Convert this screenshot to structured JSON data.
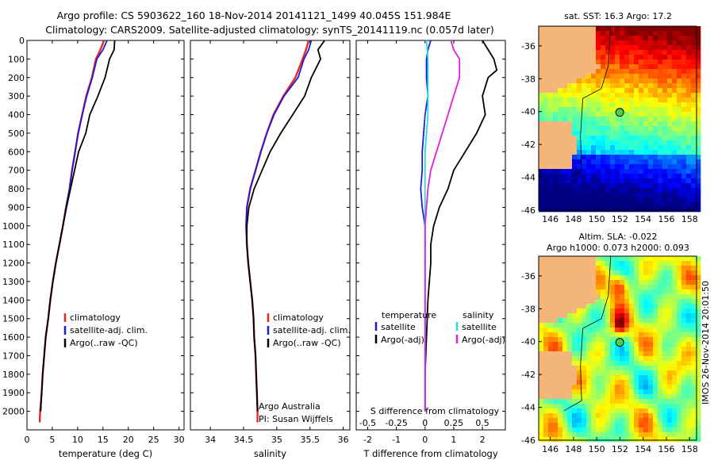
{
  "header": {
    "line1": "Argo profile: CS 5903622_160 18-Nov-2014 20141121_1499 40.045S 151.984E",
    "line2": "Climatology: CARS2009. Satellite-adjusted climatology: synTS_20141119.nc (0.057d later)"
  },
  "colors": {
    "climatology": "#e8281e",
    "satellite": "#1c1cd8",
    "argo": "#000000",
    "sat_salinity": "#22e0e0",
    "argo_salinity": "#e020e0",
    "land": "#f3b57a",
    "marker": "#4ad04a"
  },
  "chart_data": [
    {
      "type": "line",
      "id": "temperature",
      "xlabel": "temperature (deg C)",
      "ylabel": "",
      "xlim": [
        0,
        31
      ],
      "ylim": [
        2100,
        0
      ],
      "x_ticks": [
        "0",
        "5",
        "10",
        "15",
        "20",
        "25",
        "30"
      ],
      "y_ticks": [
        "0",
        "100",
        "200",
        "300",
        "400",
        "500",
        "600",
        "700",
        "800",
        "900",
        "1000",
        "1100",
        "1200",
        "1300",
        "1400",
        "1500",
        "1600",
        "1700",
        "1800",
        "1900",
        "2000"
      ],
      "legend": [
        "climatology",
        "satellite-adj. clim.",
        "Argo(..raw -QC)"
      ],
      "series": [
        {
          "name": "climatology",
          "color_key": "climatology",
          "points": [
            [
              15.2,
              0
            ],
            [
              14.5,
              50
            ],
            [
              13.6,
              100
            ],
            [
              12.8,
              200
            ],
            [
              11.7,
              300
            ],
            [
              10.9,
              400
            ],
            [
              10.1,
              500
            ],
            [
              9.5,
              600
            ],
            [
              8.9,
              700
            ],
            [
              8.4,
              800
            ],
            [
              7.7,
              900
            ],
            [
              7.1,
              1000
            ],
            [
              6.4,
              1100
            ],
            [
              5.7,
              1200
            ],
            [
              5.1,
              1300
            ],
            [
              4.6,
              1400
            ],
            [
              4.2,
              1500
            ],
            [
              3.7,
              1600
            ],
            [
              3.4,
              1700
            ],
            [
              3.1,
              1800
            ],
            [
              2.9,
              1900
            ],
            [
              2.6,
              2000
            ],
            [
              2.5,
              2060
            ]
          ]
        },
        {
          "name": "satellite-adj. clim.",
          "color_key": "satellite",
          "points": [
            [
              15.8,
              0
            ],
            [
              15.0,
              50
            ],
            [
              13.8,
              100
            ],
            [
              12.9,
              200
            ],
            [
              11.8,
              300
            ],
            [
              10.9,
              400
            ],
            [
              10.1,
              500
            ],
            [
              9.5,
              600
            ],
            [
              8.9,
              700
            ],
            [
              8.4,
              800
            ],
            [
              7.7,
              900
            ],
            [
              7.1,
              1000
            ],
            [
              6.4,
              1100
            ],
            [
              5.7,
              1200
            ],
            [
              5.1,
              1300
            ],
            [
              4.6,
              1400
            ],
            [
              4.2,
              1500
            ],
            [
              3.7,
              1600
            ],
            [
              3.4,
              1700
            ],
            [
              3.1,
              1800
            ],
            [
              2.9,
              1900
            ],
            [
              2.7,
              2000
            ]
          ]
        },
        {
          "name": "Argo(..raw -QC)",
          "color_key": "argo",
          "points": [
            [
              17.3,
              0
            ],
            [
              17.2,
              50
            ],
            [
              16.3,
              100
            ],
            [
              15.4,
              200
            ],
            [
              14.0,
              300
            ],
            [
              12.4,
              400
            ],
            [
              11.6,
              500
            ],
            [
              10.2,
              600
            ],
            [
              9.4,
              700
            ],
            [
              8.6,
              800
            ],
            [
              7.8,
              900
            ],
            [
              7.1,
              1000
            ],
            [
              6.4,
              1100
            ],
            [
              5.7,
              1200
            ],
            [
              5.1,
              1300
            ],
            [
              4.6,
              1400
            ],
            [
              4.2,
              1500
            ],
            [
              3.7,
              1600
            ],
            [
              3.4,
              1700
            ],
            [
              3.1,
              1800
            ],
            [
              2.9,
              1900
            ],
            [
              2.7,
              2000
            ]
          ]
        }
      ]
    },
    {
      "type": "line",
      "id": "salinity",
      "xlabel": "salinity",
      "xlim": [
        33.7,
        36.1
      ],
      "ylim": [
        2100,
        0
      ],
      "x_ticks": [
        "34",
        "34.5",
        "35",
        "35.5",
        "36"
      ],
      "legend": [
        "climatology",
        "satellite-adj. clim.",
        "Argo(..raw -QC)"
      ],
      "annotation": [
        "Argo Australia",
        "PI: Susan Wijffels"
      ],
      "series": [
        {
          "name": "climatology",
          "color_key": "climatology",
          "points": [
            [
              35.48,
              0
            ],
            [
              35.44,
              50
            ],
            [
              35.39,
              100
            ],
            [
              35.28,
              200
            ],
            [
              35.1,
              300
            ],
            [
              34.95,
              400
            ],
            [
              34.85,
              500
            ],
            [
              34.76,
              600
            ],
            [
              34.68,
              700
            ],
            [
              34.6,
              800
            ],
            [
              34.55,
              900
            ],
            [
              34.54,
              1000
            ],
            [
              34.55,
              1100
            ],
            [
              34.57,
              1200
            ],
            [
              34.6,
              1300
            ],
            [
              34.63,
              1400
            ],
            [
              34.65,
              1500
            ],
            [
              34.66,
              1600
            ],
            [
              34.68,
              1700
            ],
            [
              34.69,
              1800
            ],
            [
              34.7,
              1900
            ],
            [
              34.71,
              2000
            ],
            [
              34.71,
              2060
            ]
          ]
        },
        {
          "name": "satellite-adj. clim.",
          "color_key": "satellite",
          "points": [
            [
              35.52,
              0
            ],
            [
              35.48,
              50
            ],
            [
              35.41,
              100
            ],
            [
              35.32,
              200
            ],
            [
              35.11,
              300
            ],
            [
              34.96,
              400
            ],
            [
              34.85,
              500
            ],
            [
              34.76,
              600
            ],
            [
              34.68,
              700
            ],
            [
              34.6,
              800
            ],
            [
              34.55,
              900
            ],
            [
              34.54,
              1000
            ],
            [
              34.55,
              1100
            ],
            [
              34.57,
              1200
            ],
            [
              34.6,
              1300
            ],
            [
              34.63,
              1400
            ],
            [
              34.65,
              1500
            ],
            [
              34.66,
              1600
            ],
            [
              34.68,
              1700
            ],
            [
              34.69,
              1800
            ],
            [
              34.7,
              1900
            ],
            [
              34.71,
              2000
            ]
          ]
        },
        {
          "name": "Argo(..raw -QC)",
          "color_key": "argo",
          "points": [
            [
              35.72,
              0
            ],
            [
              35.62,
              50
            ],
            [
              35.66,
              100
            ],
            [
              35.52,
              200
            ],
            [
              35.42,
              300
            ],
            [
              35.24,
              400
            ],
            [
              35.06,
              500
            ],
            [
              34.9,
              600
            ],
            [
              34.78,
              700
            ],
            [
              34.66,
              800
            ],
            [
              34.58,
              900
            ],
            [
              34.55,
              1000
            ],
            [
              34.55,
              1100
            ],
            [
              34.57,
              1200
            ],
            [
              34.6,
              1300
            ],
            [
              34.63,
              1400
            ],
            [
              34.65,
              1500
            ],
            [
              34.66,
              1600
            ],
            [
              34.68,
              1700
            ],
            [
              34.69,
              1800
            ],
            [
              34.7,
              1900
            ],
            [
              34.71,
              2000
            ]
          ]
        }
      ]
    },
    {
      "type": "line",
      "id": "difference",
      "xlabel": "T difference from climatology",
      "xlabel_top": "S difference from climatology",
      "xlim": [
        -2.4,
        2.8
      ],
      "ylim": [
        2100,
        0
      ],
      "x_ticks_bottom": [
        "-2",
        "-1",
        "0",
        "1",
        "2"
      ],
      "x_ticks_top": [
        "-0.5",
        "-0.25",
        "0",
        "0.25",
        "0.5"
      ],
      "legend_temperature": {
        "heading": "temperature",
        "items": [
          "satellite",
          "Argo(-adj)"
        ]
      },
      "legend_salinity": {
        "heading": "salinity",
        "items": [
          "satellite",
          "Argo(-adj)"
        ]
      },
      "series": [
        {
          "name": "satellite",
          "color_key": "satellite",
          "points": [
            [
              0.2,
              0
            ],
            [
              0.1,
              50
            ],
            [
              0.05,
              100
            ],
            [
              0.05,
              200
            ],
            [
              0.1,
              300
            ],
            [
              0.0,
              400
            ],
            [
              -0.05,
              500
            ],
            [
              -0.1,
              600
            ],
            [
              -0.1,
              700
            ],
            [
              -0.15,
              800
            ],
            [
              -0.1,
              900
            ],
            [
              0.0,
              1000
            ],
            [
              0.0,
              1100
            ],
            [
              0.0,
              1200
            ],
            [
              0.0,
              1400
            ],
            [
              0.0,
              1600
            ],
            [
              0.0,
              1800
            ],
            [
              0.0,
              2000
            ]
          ]
        },
        {
          "name": "Argo(-adj)",
          "color_key": "argo",
          "points": [
            [
              2.0,
              0
            ],
            [
              2.4,
              100
            ],
            [
              2.5,
              160
            ],
            [
              2.2,
              200
            ],
            [
              2.0,
              300
            ],
            [
              2.1,
              400
            ],
            [
              1.8,
              500
            ],
            [
              1.4,
              600
            ],
            [
              1.0,
              700
            ],
            [
              0.8,
              800
            ],
            [
              0.5,
              900
            ],
            [
              0.3,
              1000
            ],
            [
              0.2,
              1100
            ],
            [
              0.2,
              1200
            ],
            [
              0.1,
              1400
            ],
            [
              0.05,
              1600
            ],
            [
              0.0,
              1800
            ],
            [
              0.0,
              2000
            ]
          ]
        },
        {
          "name": "salinity satellite",
          "color_key": "sat_salinity",
          "points": [
            [
              0.05,
              0
            ],
            [
              0.1,
              100
            ],
            [
              0.1,
              200
            ],
            [
              0.1,
              300
            ],
            [
              0.1,
              400
            ],
            [
              0.05,
              500
            ],
            [
              0.0,
              600
            ],
            [
              0.0,
              800
            ],
            [
              0.0,
              1000
            ],
            [
              0.0,
              1200
            ],
            [
              0.0,
              1500
            ],
            [
              0.0,
              2000
            ]
          ]
        },
        {
          "name": "salinity Argo(-adj)",
          "color_key": "argo_salinity",
          "points": [
            [
              0.9,
              0
            ],
            [
              1.0,
              50
            ],
            [
              1.2,
              100
            ],
            [
              1.2,
              200
            ],
            [
              1.0,
              300
            ],
            [
              0.8,
              400
            ],
            [
              0.6,
              500
            ],
            [
              0.4,
              600
            ],
            [
              0.2,
              700
            ],
            [
              0.1,
              800
            ],
            [
              0.05,
              900
            ],
            [
              0.0,
              1000
            ],
            [
              0.0,
              1200
            ],
            [
              0.0,
              1500
            ],
            [
              0.0,
              2000
            ]
          ]
        }
      ]
    },
    {
      "type": "heatmap",
      "id": "sst_map",
      "title": "sat. SST: 16.3 Argo: 17.2",
      "x_ticks": [
        "146",
        "148",
        "150",
        "152",
        "154",
        "156",
        "158"
      ],
      "y_ticks": [
        "-36",
        "-38",
        "-40",
        "-42",
        "-44",
        "-46"
      ],
      "xlim": [
        145,
        158.6
      ],
      "ylim": [
        -46,
        -34.8
      ],
      "argo_position": [
        151.984,
        -40.045
      ]
    },
    {
      "type": "heatmap",
      "id": "sla_map",
      "title": "Altim. SLA: -0.022",
      "subtitle": "Argo h1000: 0.073 h2000: 0.093",
      "x_ticks": [
        "146",
        "148",
        "150",
        "152",
        "154",
        "156",
        "158"
      ],
      "y_ticks": [
        "-36",
        "-38",
        "-40",
        "-42",
        "-44",
        "-46"
      ],
      "xlim": [
        145,
        158.6
      ],
      "ylim": [
        -46,
        -34.8
      ],
      "argo_position": [
        151.984,
        -40.045
      ]
    }
  ],
  "footer": {
    "stamp": "IMOS 26-Nov-2014 20:01:50"
  }
}
